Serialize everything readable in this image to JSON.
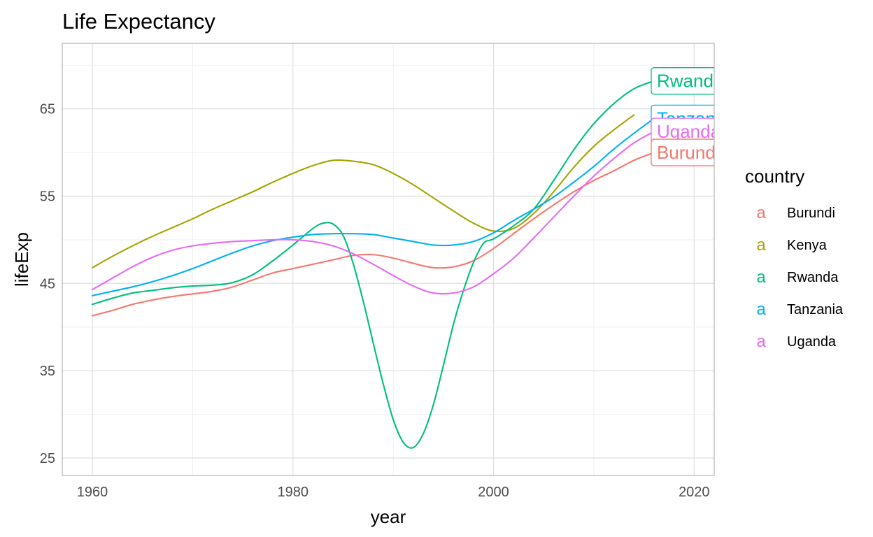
{
  "chart_data": {
    "type": "line",
    "title": "Life Expectancy",
    "xlabel": "year",
    "ylabel": "lifeExp",
    "xlim": [
      1957,
      2022
    ],
    "ylim": [
      23,
      72.5
    ],
    "x_ticks": [
      1960,
      1980,
      2000,
      2020
    ],
    "y_ticks": [
      25,
      35,
      45,
      55,
      65
    ],
    "grid": true,
    "legend": {
      "title": "country",
      "position": "right",
      "key_glyph": "a"
    },
    "series": [
      {
        "name": "Burundi",
        "color": "#F8766D",
        "x": [
          1960,
          1962,
          1964,
          1966,
          1968,
          1970,
          1972,
          1974,
          1976,
          1978,
          1980,
          1982,
          1984,
          1986,
          1988,
          1990,
          1992,
          1994,
          1996,
          1998,
          2000,
          2002,
          2004,
          2006,
          2008,
          2010,
          2012,
          2014,
          2016
        ],
        "y": [
          41.3,
          41.9,
          42.6,
          43.1,
          43.5,
          43.8,
          44.1,
          44.6,
          45.4,
          46.2,
          46.7,
          47.2,
          47.7,
          48.2,
          48.3,
          47.9,
          47.3,
          46.8,
          46.9,
          47.6,
          49.0,
          50.7,
          52.4,
          54.0,
          55.5,
          56.8,
          57.9,
          59.1,
          60.0
        ]
      },
      {
        "name": "Kenya",
        "color": "#A3A500",
        "x": [
          1960,
          1962,
          1964,
          1966,
          1968,
          1970,
          1972,
          1974,
          1976,
          1978,
          1980,
          1982,
          1984,
          1986,
          1988,
          1990,
          1992,
          1994,
          1996,
          1998,
          2000,
          2002,
          2004,
          2006,
          2008,
          2010,
          2012,
          2014
        ],
        "y": [
          46.8,
          48.1,
          49.3,
          50.4,
          51.4,
          52.4,
          53.5,
          54.5,
          55.5,
          56.6,
          57.6,
          58.5,
          59.1,
          59.0,
          58.6,
          57.6,
          56.3,
          54.8,
          53.3,
          51.9,
          51.0,
          51.3,
          53.0,
          55.5,
          58.3,
          60.7,
          62.6,
          64.3
        ]
      },
      {
        "name": "Rwanda",
        "color": "#00BF7D",
        "x": [
          1960,
          1962,
          1964,
          1966,
          1968,
          1970,
          1972,
          1974,
          1976,
          1978,
          1980,
          1982,
          1983,
          1984,
          1985,
          1986,
          1987,
          1988,
          1989,
          1990,
          1991,
          1992,
          1993,
          1994,
          1995,
          1996,
          1997,
          1998,
          1999,
          2000,
          2002,
          2004,
          2006,
          2008,
          2010,
          2012,
          2014,
          2016
        ],
        "y": [
          42.6,
          43.3,
          43.9,
          44.2,
          44.5,
          44.7,
          44.8,
          45.1,
          46.0,
          47.6,
          49.4,
          51.3,
          51.9,
          51.8,
          50.5,
          47.3,
          43.0,
          38.2,
          33.5,
          29.4,
          26.8,
          26.2,
          27.8,
          31.1,
          35.6,
          40.3,
          44.2,
          47.4,
          49.6,
          50.1,
          51.6,
          53.5,
          56.8,
          60.3,
          63.3,
          65.6,
          67.3,
          68.2
        ]
      },
      {
        "name": "Tanzania",
        "color": "#00B0F6",
        "x": [
          1960,
          1962,
          1964,
          1966,
          1968,
          1970,
          1972,
          1974,
          1976,
          1978,
          1980,
          1982,
          1984,
          1986,
          1988,
          1990,
          1992,
          1994,
          1996,
          1998,
          2000,
          2002,
          2004,
          2006,
          2008,
          2010,
          2012,
          2014,
          2016
        ],
        "y": [
          43.6,
          44.1,
          44.6,
          45.2,
          45.9,
          46.7,
          47.6,
          48.5,
          49.3,
          49.9,
          50.3,
          50.6,
          50.7,
          50.7,
          50.6,
          50.2,
          49.8,
          49.4,
          49.4,
          49.8,
          50.8,
          52.2,
          53.5,
          54.9,
          56.6,
          58.4,
          60.4,
          62.2,
          63.9
        ]
      },
      {
        "name": "Uganda",
        "color": "#E76BF3",
        "x": [
          1960,
          1962,
          1964,
          1966,
          1968,
          1970,
          1972,
          1974,
          1976,
          1978,
          1980,
          1982,
          1984,
          1986,
          1988,
          1990,
          1992,
          1994,
          1996,
          1998,
          2000,
          2002,
          2004,
          2006,
          2008,
          2010,
          2012,
          2014,
          2016
        ],
        "y": [
          44.3,
          45.6,
          46.9,
          48.0,
          48.8,
          49.3,
          49.6,
          49.8,
          49.9,
          50.0,
          50.0,
          49.8,
          49.3,
          48.4,
          47.2,
          45.9,
          44.7,
          43.9,
          43.9,
          44.6,
          46.1,
          47.9,
          50.2,
          52.6,
          55.0,
          57.3,
          59.3,
          61.1,
          62.4
        ]
      }
    ],
    "end_labels": [
      {
        "series": "Rwanda",
        "text": "Rwanda"
      },
      {
        "series": "Tanzania",
        "text": "Tanzania"
      },
      {
        "series": "Uganda",
        "text": "Uganda"
      },
      {
        "series": "Burundi",
        "text": "Burundi"
      }
    ]
  }
}
